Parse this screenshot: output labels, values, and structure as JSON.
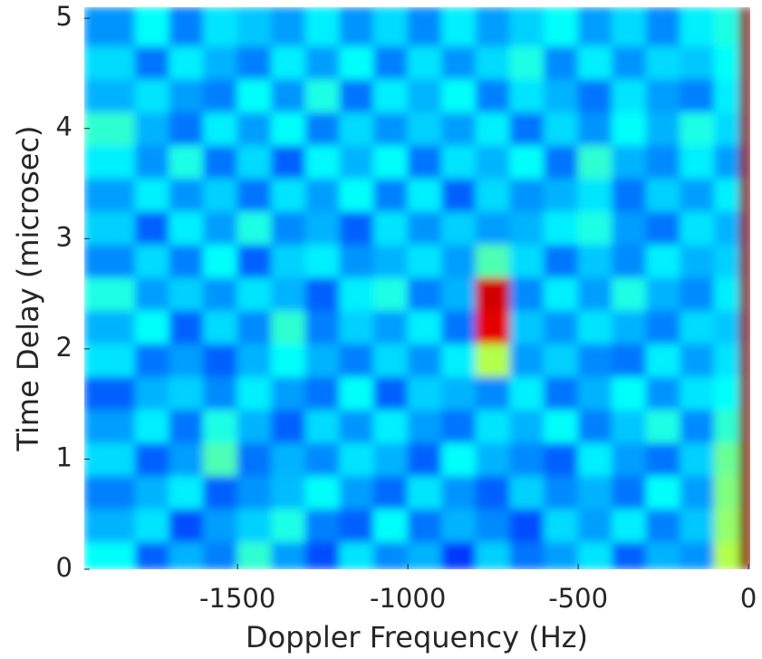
{
  "chart_data": {
    "type": "heatmap",
    "xlabel": "Doppler Frequency (Hz)",
    "ylabel": "Time Delay (microsec)",
    "colormap": "jet",
    "zlim": [
      0,
      1
    ],
    "x": [
      -1850,
      -1750,
      -1650,
      -1550,
      -1450,
      -1350,
      -1250,
      -1150,
      -1050,
      -950,
      -850,
      -750,
      -650,
      -550,
      -450,
      -350,
      -250,
      -150,
      -50,
      0
    ],
    "y": [
      0.1,
      0.4,
      0.7,
      1.0,
      1.3,
      1.6,
      1.9,
      2.2,
      2.5,
      2.8,
      3.1,
      3.4,
      3.7,
      4.0,
      4.3,
      4.6,
      4.9
    ],
    "z": [
      [
        0.38,
        0.22,
        0.3,
        0.25,
        0.42,
        0.28,
        0.2,
        0.35,
        0.26,
        0.3,
        0.18,
        0.33,
        0.24,
        0.28,
        0.35,
        0.22,
        0.3,
        0.27,
        0.55,
        1
      ],
      [
        0.3,
        0.35,
        0.2,
        0.28,
        0.33,
        0.4,
        0.25,
        0.22,
        0.38,
        0.24,
        0.3,
        0.26,
        0.2,
        0.34,
        0.28,
        0.36,
        0.25,
        0.32,
        0.52,
        1
      ],
      [
        0.25,
        0.3,
        0.36,
        0.22,
        0.27,
        0.31,
        0.38,
        0.28,
        0.23,
        0.35,
        0.27,
        0.22,
        0.33,
        0.26,
        0.3,
        0.24,
        0.38,
        0.28,
        0.5,
        1
      ],
      [
        0.34,
        0.22,
        0.28,
        0.45,
        0.24,
        0.3,
        0.26,
        0.35,
        0.3,
        0.22,
        0.38,
        0.3,
        0.26,
        0.22,
        0.36,
        0.28,
        0.24,
        0.33,
        0.48,
        1
      ],
      [
        0.28,
        0.36,
        0.24,
        0.4,
        0.3,
        0.22,
        0.34,
        0.27,
        0.36,
        0.28,
        0.24,
        0.35,
        0.3,
        0.38,
        0.25,
        0.32,
        0.4,
        0.26,
        0.42,
        1
      ],
      [
        0.22,
        0.3,
        0.33,
        0.26,
        0.36,
        0.28,
        0.24,
        0.38,
        0.22,
        0.33,
        0.3,
        0.26,
        0.36,
        0.24,
        0.3,
        0.38,
        0.27,
        0.35,
        0.38,
        1
      ],
      [
        0.35,
        0.24,
        0.28,
        0.22,
        0.3,
        0.38,
        0.3,
        0.25,
        0.34,
        0.27,
        0.36,
        0.55,
        0.28,
        0.33,
        0.26,
        0.24,
        0.36,
        0.28,
        0.35,
        1
      ],
      [
        0.3,
        0.38,
        0.22,
        0.34,
        0.26,
        0.42,
        0.25,
        0.33,
        0.28,
        0.36,
        0.24,
        0.9,
        0.32,
        0.27,
        0.35,
        0.3,
        0.25,
        0.34,
        0.32,
        1
      ],
      [
        0.4,
        0.28,
        0.33,
        0.27,
        0.35,
        0.3,
        0.22,
        0.36,
        0.4,
        0.25,
        0.3,
        0.92,
        0.26,
        0.36,
        0.28,
        0.4,
        0.3,
        0.26,
        0.36,
        1
      ],
      [
        0.26,
        0.34,
        0.25,
        0.38,
        0.22,
        0.33,
        0.36,
        0.27,
        0.3,
        0.35,
        0.28,
        0.45,
        0.34,
        0.24,
        0.32,
        0.26,
        0.36,
        0.3,
        0.33,
        1
      ],
      [
        0.33,
        0.22,
        0.36,
        0.28,
        0.4,
        0.26,
        0.3,
        0.22,
        0.35,
        0.27,
        0.33,
        0.28,
        0.3,
        0.36,
        0.4,
        0.28,
        0.24,
        0.35,
        0.3,
        1
      ],
      [
        0.28,
        0.36,
        0.27,
        0.33,
        0.24,
        0.35,
        0.28,
        0.38,
        0.25,
        0.36,
        0.22,
        0.34,
        0.27,
        0.3,
        0.35,
        0.24,
        0.33,
        0.28,
        0.36,
        1
      ],
      [
        0.36,
        0.27,
        0.4,
        0.24,
        0.34,
        0.22,
        0.37,
        0.3,
        0.38,
        0.24,
        0.35,
        0.3,
        0.38,
        0.24,
        0.42,
        0.3,
        0.26,
        0.36,
        0.28,
        1
      ],
      [
        0.42,
        0.3,
        0.24,
        0.36,
        0.28,
        0.38,
        0.25,
        0.34,
        0.27,
        0.33,
        0.28,
        0.36,
        0.24,
        0.34,
        0.27,
        0.38,
        0.3,
        0.4,
        0.34,
        1
      ],
      [
        0.3,
        0.35,
        0.28,
        0.25,
        0.38,
        0.27,
        0.4,
        0.24,
        0.36,
        0.3,
        0.38,
        0.25,
        0.35,
        0.3,
        0.24,
        0.35,
        0.28,
        0.25,
        0.36,
        1
      ],
      [
        0.34,
        0.24,
        0.36,
        0.3,
        0.25,
        0.36,
        0.28,
        0.38,
        0.25,
        0.35,
        0.27,
        0.34,
        0.4,
        0.26,
        0.36,
        0.27,
        0.34,
        0.32,
        0.38,
        1
      ],
      [
        0.27,
        0.38,
        0.25,
        0.35,
        0.32,
        0.28,
        0.36,
        0.27,
        0.34,
        0.26,
        0.36,
        0.28,
        0.33,
        0.38,
        0.28,
        0.34,
        0.26,
        0.36,
        0.4,
        1
      ]
    ],
    "xlim": [
      -1950,
      5
    ],
    "ylim": [
      0,
      5.1
    ],
    "xticks": [
      -1500,
      -1000,
      -500,
      0
    ],
    "yticks": [
      0,
      1,
      2,
      3,
      4,
      5
    ]
  }
}
